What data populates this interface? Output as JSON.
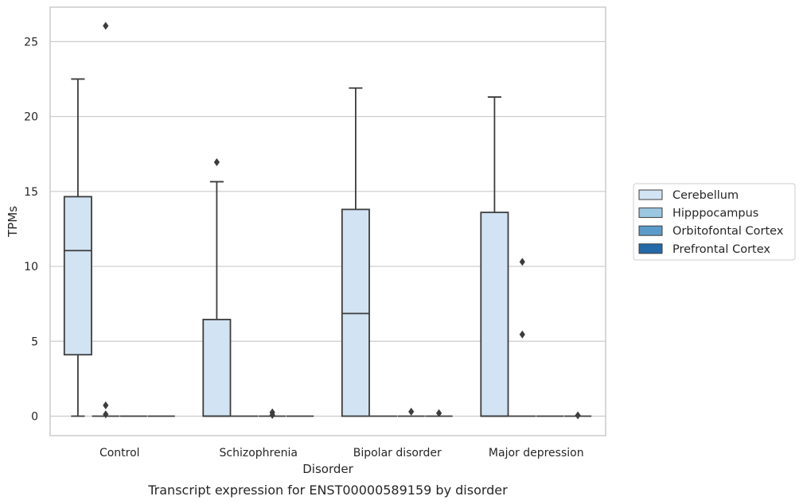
{
  "chart_data": {
    "type": "box",
    "caption": "Transcript expression for ENST00000589159 by disorder",
    "xlabel": "Disorder",
    "ylabel": "TPMs",
    "ylim": [
      -1.3,
      27.3
    ],
    "yticks": [
      0,
      5,
      10,
      15,
      20,
      25
    ],
    "grid": "horizontal",
    "legend_position": "right",
    "categories": [
      "Control",
      "Schizophrenia",
      "Bipolar disorder",
      "Major depression"
    ],
    "series": [
      {
        "name": "Cerebellum",
        "color": "#d2e3f3",
        "boxes": [
          {
            "whisker_low": 0,
            "q1": 4.1,
            "median": 11.05,
            "q3": 14.65,
            "whisker_high": 22.5,
            "outliers": []
          },
          {
            "whisker_low": 0,
            "q1": 0,
            "median": 0,
            "q3": 6.45,
            "whisker_high": 15.65,
            "outliers": [
              16.95
            ]
          },
          {
            "whisker_low": 0,
            "q1": 0,
            "median": 6.85,
            "q3": 13.8,
            "whisker_high": 21.9,
            "outliers": []
          },
          {
            "whisker_low": 0,
            "q1": 0,
            "median": 0,
            "q3": 13.6,
            "whisker_high": 21.3,
            "outliers": []
          }
        ]
      },
      {
        "name": "Hipppocampus",
        "color": "#9ac8e0",
        "boxes": [
          {
            "whisker_low": 0,
            "q1": 0,
            "median": 0,
            "q3": 0,
            "whisker_high": 0,
            "outliers": [
              26.05,
              0.72,
              0.12
            ]
          },
          {
            "whisker_low": 0,
            "q1": 0,
            "median": 0,
            "q3": 0,
            "whisker_high": 0,
            "outliers": []
          },
          {
            "whisker_low": 0,
            "q1": 0,
            "median": 0,
            "q3": 0,
            "whisker_high": 0,
            "outliers": []
          },
          {
            "whisker_low": 0,
            "q1": 0,
            "median": 0,
            "q3": 0,
            "whisker_high": 0,
            "outliers": [
              10.3,
              5.45
            ]
          }
        ]
      },
      {
        "name": "Orbitofontal Cortex",
        "color": "#5a9bc9",
        "boxes": [
          {
            "whisker_low": 0,
            "q1": 0,
            "median": 0,
            "q3": 0,
            "whisker_high": 0,
            "outliers": []
          },
          {
            "whisker_low": 0,
            "q1": 0,
            "median": 0,
            "q3": 0,
            "whisker_high": 0,
            "outliers": [
              0.25,
              0.08
            ]
          },
          {
            "whisker_low": 0,
            "q1": 0,
            "median": 0,
            "q3": 0,
            "whisker_high": 0,
            "outliers": [
              0.3
            ]
          },
          {
            "whisker_low": 0,
            "q1": 0,
            "median": 0,
            "q3": 0,
            "whisker_high": 0,
            "outliers": []
          }
        ]
      },
      {
        "name": "Prefrontal Cortex",
        "color": "#2469a8",
        "boxes": [
          {
            "whisker_low": 0,
            "q1": 0,
            "median": 0,
            "q3": 0,
            "whisker_high": 0,
            "outliers": []
          },
          {
            "whisker_low": 0,
            "q1": 0,
            "median": 0,
            "q3": 0,
            "whisker_high": 0,
            "outliers": []
          },
          {
            "whisker_low": 0,
            "q1": 0,
            "median": 0,
            "q3": 0,
            "whisker_high": 0,
            "outliers": [
              0.2
            ]
          },
          {
            "whisker_low": 0,
            "q1": 0,
            "median": 0,
            "q3": 0,
            "whisker_high": 0,
            "outliers": [
              0.05
            ]
          }
        ]
      }
    ]
  }
}
